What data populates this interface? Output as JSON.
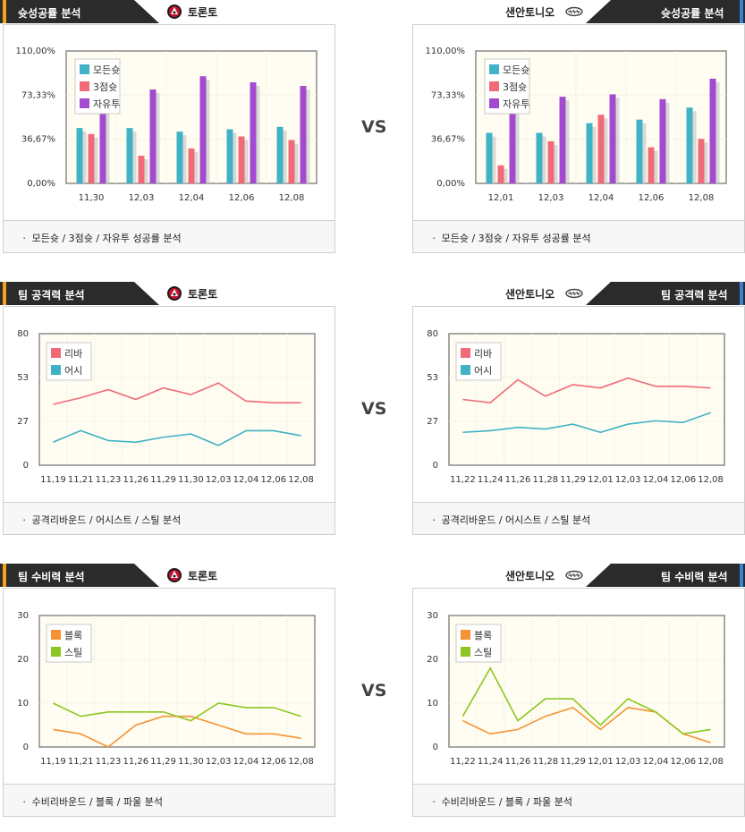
{
  "vs_label": "VS",
  "sections": [
    {
      "id": "shooting",
      "title": "슛성공률 분석",
      "footer": "ㆍ 모든슛 / 3점슛 / 자유투 성공률 분석",
      "left_team": {
        "name": "토론토",
        "icon": "raptors-logo-icon"
      },
      "right_team": {
        "name": "샌안토니오",
        "icon": "spurs-logo-icon"
      },
      "left_chart": {
        "type": "bar",
        "yticks": [
          "110,00%",
          "73,33%",
          "36,67%",
          "0,00%"
        ],
        "ylim": [
          0,
          110
        ],
        "categories": [
          "11,30",
          "12,03",
          "12,04",
          "12,06",
          "12,08"
        ],
        "series": [
          {
            "name": "모든슛",
            "color": "#3fb2c5",
            "values": [
              46,
              46,
              43,
              45,
              47
            ]
          },
          {
            "name": "3점슛",
            "color": "#f06a78",
            "values": [
              41,
              23,
              29,
              39,
              36
            ]
          },
          {
            "name": "자유투",
            "color": "#a44ad0",
            "values": [
              62,
              78,
              89,
              84,
              81
            ]
          }
        ]
      },
      "right_chart": {
        "type": "bar",
        "yticks": [
          "110,00%",
          "73,33%",
          "36,67%",
          "0,00%"
        ],
        "ylim": [
          0,
          110
        ],
        "categories": [
          "12,01",
          "12,03",
          "12,04",
          "12,06",
          "12,08"
        ],
        "series": [
          {
            "name": "모든슛",
            "color": "#3fb2c5",
            "values": [
              42,
              42,
              50,
              53,
              63
            ]
          },
          {
            "name": "3점슛",
            "color": "#f06a78",
            "values": [
              15,
              35,
              57,
              30,
              37
            ]
          },
          {
            "name": "자유투",
            "color": "#a44ad0",
            "values": [
              62,
              72,
              74,
              70,
              87
            ]
          }
        ]
      }
    },
    {
      "id": "offense",
      "title": "팀 공격력 분석",
      "footer": "ㆍ 공격리바운드 / 어시스트 / 스틸 분석",
      "left_team": {
        "name": "토론토",
        "icon": "raptors-logo-icon"
      },
      "right_team": {
        "name": "샌안토니오",
        "icon": "spurs-logo-icon"
      },
      "left_chart": {
        "type": "line",
        "yticks": [
          "80",
          "53",
          "27",
          "0"
        ],
        "ylim": [
          0,
          80
        ],
        "categories": [
          "11,19",
          "11,21",
          "11,23",
          "11,26",
          "11,29",
          "11,30",
          "12,03",
          "12,04",
          "12,06",
          "12,08"
        ],
        "series": [
          {
            "name": "리바",
            "color": "#f06a78",
            "values": [
              37,
              41,
              46,
              40,
              47,
              43,
              50,
              39,
              38,
              38
            ]
          },
          {
            "name": "어시",
            "color": "#3fb2c5",
            "values": [
              14,
              21,
              15,
              14,
              17,
              19,
              12,
              21,
              21,
              18
            ]
          }
        ]
      },
      "right_chart": {
        "type": "line",
        "yticks": [
          "80",
          "53",
          "27",
          "0"
        ],
        "ylim": [
          0,
          80
        ],
        "categories": [
          "11,22",
          "11,24",
          "11,26",
          "11,28",
          "11,29",
          "12,01",
          "12,03",
          "12,04",
          "12,06",
          "12,08"
        ],
        "series": [
          {
            "name": "리바",
            "color": "#f06a78",
            "values": [
              40,
              38,
              52,
              42,
              49,
              47,
              53,
              48,
              48,
              47
            ]
          },
          {
            "name": "어시",
            "color": "#3fb2c5",
            "values": [
              20,
              21,
              23,
              22,
              25,
              20,
              25,
              27,
              26,
              32
            ]
          }
        ]
      }
    },
    {
      "id": "defense",
      "title": "팀 수비력 분석",
      "footer": "ㆍ 수비리바운드 / 블록 / 파울 분석",
      "left_team": {
        "name": "토론토",
        "icon": "raptors-logo-icon"
      },
      "right_team": {
        "name": "샌안토니오",
        "icon": "spurs-logo-icon"
      },
      "left_chart": {
        "type": "line",
        "yticks": [
          "30",
          "20",
          "10",
          "0"
        ],
        "ylim": [
          0,
          30
        ],
        "categories": [
          "11,19",
          "11,21",
          "11,23",
          "11,26",
          "11,29",
          "11,30",
          "12,03",
          "12,04",
          "12,06",
          "12,08"
        ],
        "series": [
          {
            "name": "블록",
            "color": "#f59234",
            "values": [
              4,
              3,
              0,
              5,
              7,
              7,
              5,
              3,
              3,
              2
            ]
          },
          {
            "name": "스틸",
            "color": "#8dc622",
            "values": [
              10,
              7,
              8,
              8,
              8,
              6,
              10,
              9,
              9,
              7
            ]
          }
        ]
      },
      "right_chart": {
        "type": "line",
        "yticks": [
          "30",
          "20",
          "10",
          "0"
        ],
        "ylim": [
          0,
          30
        ],
        "categories": [
          "11,22",
          "11,24",
          "11,26",
          "11,28",
          "11,29",
          "12,01",
          "12,03",
          "12,04",
          "12,06",
          "12,08"
        ],
        "series": [
          {
            "name": "블록",
            "color": "#f59234",
            "values": [
              6,
              3,
              4,
              7,
              9,
              4,
              9,
              8,
              3,
              1
            ]
          },
          {
            "name": "스틸",
            "color": "#8dc622",
            "values": [
              7,
              18,
              6,
              11,
              11,
              5,
              11,
              8,
              3,
              4
            ]
          }
        ]
      }
    }
  ],
  "colors": {
    "tab_dark": "#2b2b2b",
    "accent_left": "#f2a11a",
    "accent_right": "#3b7fd8",
    "plot_bg": "#fffdf1",
    "footer_bg": "#f7f7f7"
  }
}
